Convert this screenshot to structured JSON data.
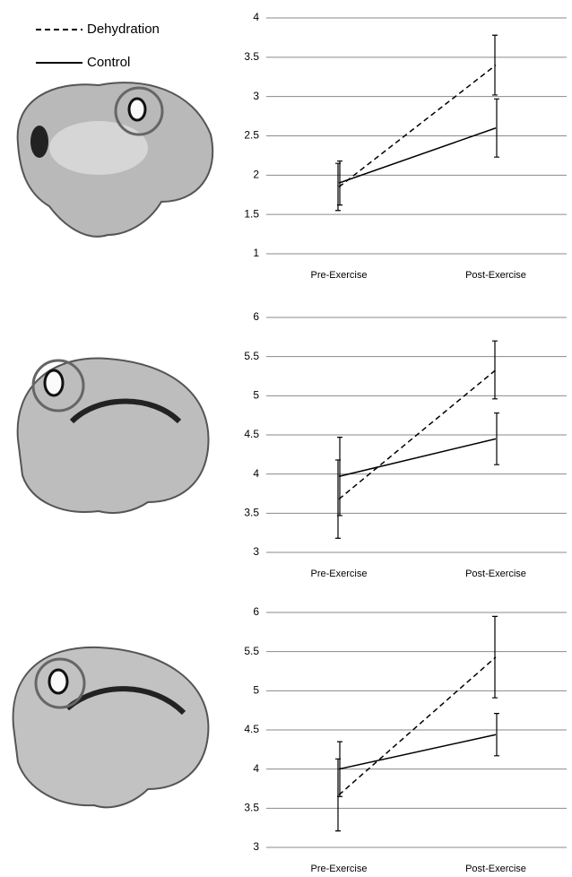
{
  "chart_data": [
    {
      "type": "line",
      "categories": [
        "Pre-Exercise",
        "Post-Exercise"
      ],
      "ylim": [
        1,
        4
      ],
      "yticks": [
        1,
        1.5,
        2,
        2.5,
        3,
        3.5,
        4
      ],
      "grid": true,
      "series": [
        {
          "name": "Dehydration",
          "color": "#000000",
          "line_style": "dashed",
          "values": [
            1.85,
            3.4
          ],
          "errors": [
            0.3,
            0.38
          ]
        },
        {
          "name": "Control",
          "color": "#000000",
          "line_style": "solid",
          "values": [
            1.9,
            2.6
          ],
          "errors": [
            0.28,
            0.37
          ]
        }
      ]
    },
    {
      "type": "line",
      "categories": [
        "Pre-Exercise",
        "Post-Exercise"
      ],
      "ylim": [
        3,
        6
      ],
      "yticks": [
        3,
        3.5,
        4,
        4.5,
        5,
        5.5,
        6
      ],
      "grid": true,
      "series": [
        {
          "color": "#000000",
          "line_style": "dashed",
          "values": [
            3.68,
            5.33
          ],
          "errors": [
            0.5,
            0.37
          ]
        },
        {
          "color": "#000000",
          "line_style": "solid",
          "values": [
            3.97,
            4.45
          ],
          "errors": [
            0.5,
            0.33
          ]
        }
      ]
    },
    {
      "type": "line",
      "categories": [
        "Pre-Exercise",
        "Post-Exercise"
      ],
      "ylim": [
        3,
        6
      ],
      "yticks": [
        3,
        3.5,
        4,
        4.5,
        5,
        5.5,
        6
      ],
      "grid": true,
      "series": [
        {
          "color": "#000000",
          "line_style": "dashed",
          "values": [
            3.67,
            5.43
          ],
          "errors": [
            0.46,
            0.52
          ]
        },
        {
          "color": "#000000",
          "line_style": "solid",
          "values": [
            4.0,
            4.44
          ],
          "errors": [
            0.35,
            0.27
          ]
        }
      ]
    }
  ]
}
